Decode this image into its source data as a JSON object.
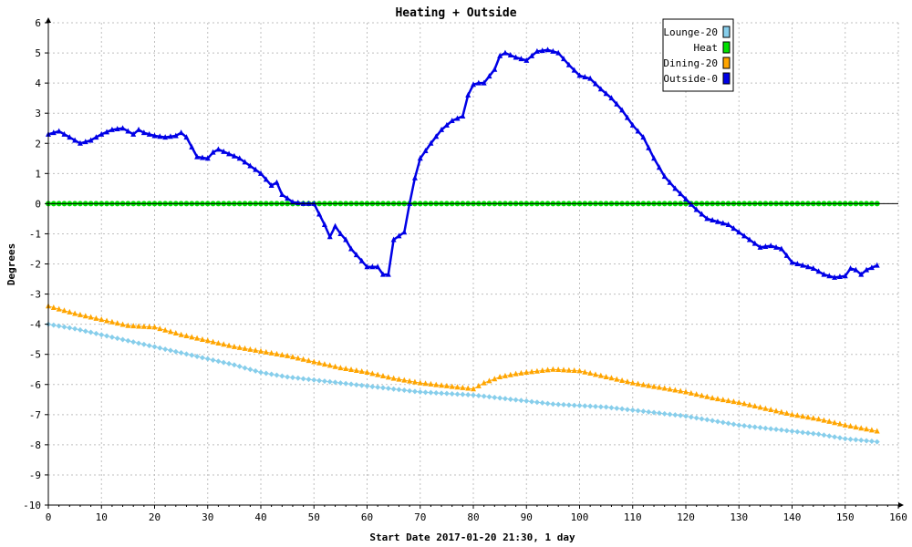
{
  "chart_data": {
    "type": "line",
    "title": "Heating + Outside",
    "xlabel": "Start Date 2017-01-20 21:30, 1 day",
    "ylabel": "Degrees",
    "xlim": [
      0,
      160
    ],
    "ylim": [
      -10,
      6
    ],
    "x_ticks": [
      "0",
      "10",
      "20",
      "30",
      "40",
      "50",
      "60",
      "70",
      "80",
      "90",
      "100",
      "110",
      "120",
      "130",
      "140",
      "150",
      "160"
    ],
    "y_ticks": [
      "6",
      "5",
      "4",
      "3",
      "2",
      "1",
      "0",
      "-1",
      "-2",
      "-3",
      "-4",
      "-5",
      "-6",
      "-7",
      "-8",
      "-9",
      "-10"
    ],
    "grid": true,
    "legend_position": "top-right",
    "series": [
      {
        "name": "Lounge-20",
        "color": "#87ceeb",
        "marker": "diamond",
        "x": [
          0,
          5,
          10,
          15,
          20,
          25,
          30,
          35,
          40,
          45,
          50,
          55,
          60,
          65,
          70,
          75,
          80,
          85,
          90,
          95,
          100,
          105,
          110,
          115,
          120,
          125,
          130,
          135,
          140,
          145,
          150,
          156
        ],
        "values": [
          -4.0,
          -4.15,
          -4.35,
          -4.55,
          -4.75,
          -4.95,
          -5.15,
          -5.35,
          -5.6,
          -5.75,
          -5.85,
          -5.95,
          -6.05,
          -6.15,
          -6.25,
          -6.3,
          -6.35,
          -6.45,
          -6.55,
          -6.65,
          -6.7,
          -6.75,
          -6.85,
          -6.95,
          -7.05,
          -7.2,
          -7.35,
          -7.45,
          -7.55,
          -7.65,
          -7.8,
          -7.9
        ]
      },
      {
        "name": "Heat",
        "color": "#00e000",
        "marker": "circle",
        "x": [
          0,
          5,
          10,
          15,
          20,
          25,
          30,
          35,
          40,
          45,
          50,
          55,
          60,
          65,
          70,
          75,
          80,
          85,
          90,
          95,
          100,
          105,
          110,
          115,
          120,
          125,
          130,
          135,
          140,
          145,
          150,
          156
        ],
        "values": [
          0,
          0,
          0,
          0,
          0,
          0,
          0,
          0,
          0,
          0,
          0,
          0,
          0,
          0,
          0,
          0,
          0,
          0,
          0,
          0,
          0,
          0,
          0,
          0,
          0,
          0,
          0,
          0,
          0,
          0,
          0,
          0
        ]
      },
      {
        "name": "Dining-20",
        "color": "#ffa500",
        "marker": "triangle",
        "x": [
          0,
          5,
          10,
          15,
          20,
          25,
          30,
          35,
          40,
          45,
          50,
          55,
          60,
          65,
          70,
          75,
          80,
          82,
          85,
          88,
          90,
          95,
          100,
          105,
          110,
          115,
          120,
          125,
          130,
          135,
          140,
          145,
          150,
          156
        ],
        "values": [
          -3.4,
          -3.65,
          -3.85,
          -4.05,
          -4.1,
          -4.35,
          -4.55,
          -4.75,
          -4.9,
          -5.05,
          -5.25,
          -5.45,
          -5.6,
          -5.8,
          -5.95,
          -6.05,
          -6.15,
          -5.95,
          -5.75,
          -5.65,
          -5.6,
          -5.5,
          -5.55,
          -5.75,
          -5.95,
          -6.1,
          -6.25,
          -6.45,
          -6.6,
          -6.8,
          -7.0,
          -7.15,
          -7.35,
          -7.55
        ]
      },
      {
        "name": "Outside-0",
        "color": "#0000e6",
        "marker": "triangle",
        "x": [
          0,
          2,
          4,
          6,
          8,
          10,
          12,
          14,
          16,
          17,
          18,
          20,
          22,
          24,
          25,
          26,
          28,
          30,
          31,
          32,
          34,
          36,
          38,
          40,
          42,
          43,
          44,
          46,
          48,
          50,
          52,
          53,
          54,
          55,
          56,
          57,
          58,
          60,
          62,
          63,
          64,
          65,
          67,
          68,
          69,
          70,
          72,
          74,
          76,
          78,
          79,
          80,
          81,
          82,
          84,
          85,
          86,
          88,
          90,
          92,
          94,
          96,
          98,
          100,
          102,
          104,
          106,
          108,
          110,
          112,
          114,
          116,
          118,
          120,
          122,
          124,
          126,
          128,
          130,
          132,
          134,
          136,
          138,
          140,
          142,
          144,
          146,
          148,
          150,
          151,
          152,
          153,
          154,
          156
        ],
        "values": [
          2.3,
          2.4,
          2.2,
          2.0,
          2.1,
          2.3,
          2.45,
          2.5,
          2.3,
          2.45,
          2.35,
          2.25,
          2.2,
          2.25,
          2.35,
          2.2,
          1.55,
          1.5,
          1.7,
          1.8,
          1.65,
          1.5,
          1.25,
          1.0,
          0.6,
          0.7,
          0.3,
          0.05,
          0.0,
          0.0,
          -0.7,
          -1.1,
          -0.75,
          -1.0,
          -1.2,
          -1.5,
          -1.7,
          -2.1,
          -2.1,
          -2.35,
          -2.35,
          -1.2,
          -0.95,
          0.0,
          0.85,
          1.5,
          2.0,
          2.45,
          2.75,
          2.9,
          3.6,
          3.95,
          4.0,
          4.0,
          4.45,
          4.9,
          5.0,
          4.85,
          4.75,
          5.05,
          5.1,
          5.0,
          4.6,
          4.25,
          4.15,
          3.8,
          3.5,
          3.1,
          2.6,
          2.2,
          1.5,
          0.9,
          0.5,
          0.15,
          -0.2,
          -0.5,
          -0.6,
          -0.7,
          -0.95,
          -1.2,
          -1.45,
          -1.4,
          -1.5,
          -1.95,
          -2.05,
          -2.15,
          -2.35,
          -2.45,
          -2.4,
          -2.15,
          -2.2,
          -2.35,
          -2.2,
          -2.05
        ]
      }
    ]
  }
}
